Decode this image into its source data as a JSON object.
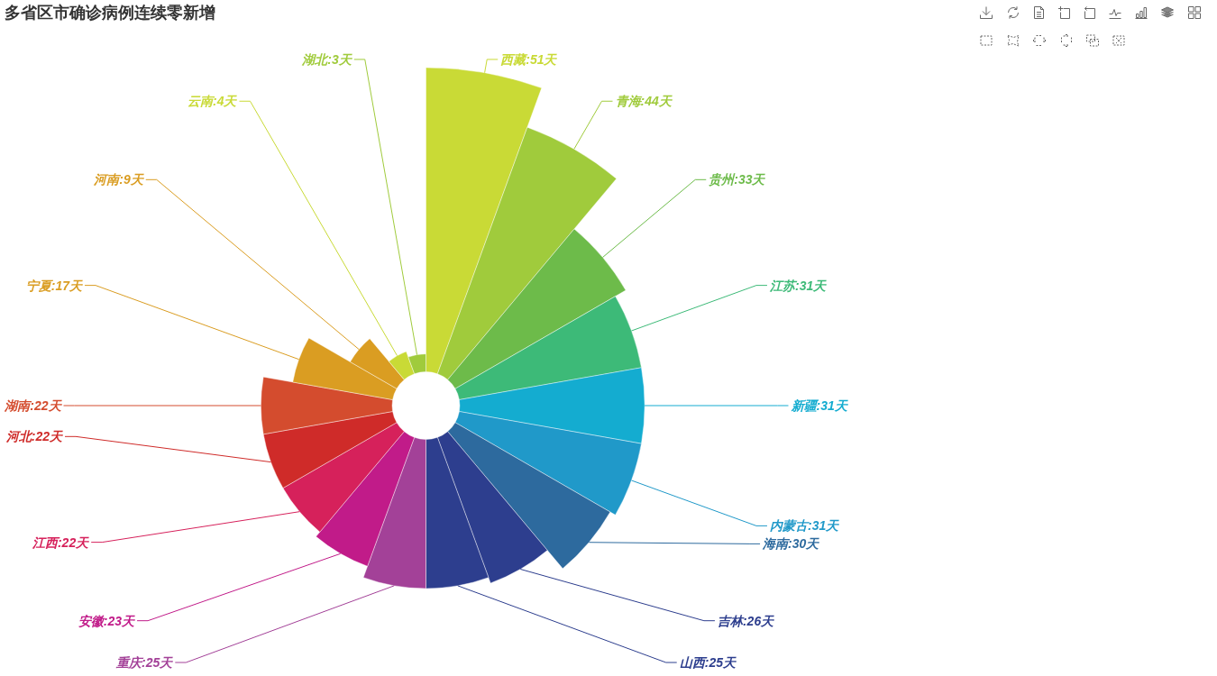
{
  "chart_data": {
    "type": "other",
    "title": "多省区市确诊病例连续零新增",
    "categories": [
      "西藏",
      "青海",
      "贵州",
      "江苏",
      "新疆",
      "内蒙古",
      "海南",
      "吉林",
      "山西",
      "重庆",
      "安徽",
      "江西",
      "河北",
      "湖南",
      "宁夏",
      "河南",
      "云南",
      "湖北"
    ],
    "values": [
      51,
      44,
      33,
      31,
      31,
      31,
      30,
      26,
      25,
      25,
      23,
      22,
      22,
      22,
      17,
      9,
      4,
      3
    ],
    "value_labels": [
      ":51天",
      ":44天",
      ":33天",
      ":31天",
      ":31天",
      ":31天",
      ":30天",
      ":26天",
      ":25天",
      ":25天",
      ":23天",
      ":22天",
      ":22天",
      ":22天",
      ":17天",
      ":9天",
      ":4天",
      ":3天"
    ],
    "colors": [
      "#c9da36",
      "#a0cb3c",
      "#6dbb4a",
      "#3dba78",
      "#14acd0",
      "#2099c9",
      "#2d6a9e",
      "#2d3e8e",
      "#2d3e8e",
      "#a34198",
      "#c11b89",
      "#d6215b",
      "#cf2b29",
      "#d44c2e",
      "#da9d22",
      "#da9d22",
      "#c9da36",
      "#a0cb3c"
    ]
  }
}
